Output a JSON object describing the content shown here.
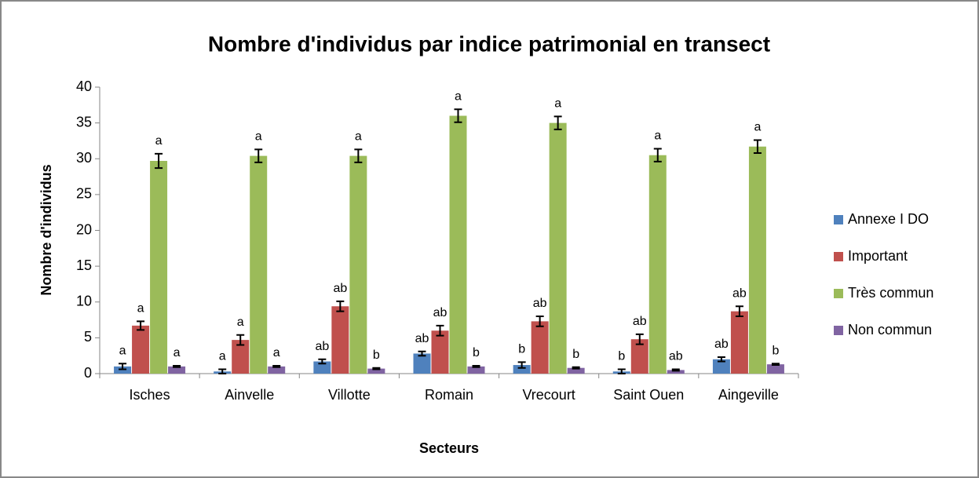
{
  "chart_data": {
    "type": "bar",
    "title": "Nombre d'individus par indice patrimonial en transect",
    "xlabel": "Secteurs",
    "ylabel": "Nombre d'individus",
    "categories": [
      "Isches",
      "Ainvelle",
      "Villotte",
      "Romain",
      "Vrecourt",
      "Saint Ouen",
      "Aingeville"
    ],
    "series": [
      {
        "name": "Annexe I DO",
        "color": "#4f81bd",
        "values": [
          1.0,
          0.3,
          1.7,
          2.8,
          1.2,
          0.3,
          2.0
        ],
        "errors": [
          0.4,
          0.3,
          0.3,
          0.3,
          0.4,
          0.3,
          0.3
        ],
        "labels": [
          "a",
          "a",
          "ab",
          "ab",
          "b",
          "b",
          "ab"
        ]
      },
      {
        "name": "Important",
        "color": "#c0504d",
        "values": [
          6.7,
          4.7,
          9.4,
          6.0,
          7.3,
          4.8,
          8.7
        ],
        "errors": [
          0.6,
          0.7,
          0.7,
          0.7,
          0.7,
          0.7,
          0.7
        ],
        "labels": [
          "a",
          "a",
          "ab",
          "ab",
          "ab",
          "ab",
          "ab"
        ]
      },
      {
        "name": "Très commun",
        "color": "#9bbb59",
        "values": [
          29.7,
          30.4,
          30.4,
          36.0,
          35.0,
          30.5,
          31.7
        ],
        "errors": [
          1.0,
          0.9,
          0.9,
          0.9,
          0.9,
          0.9,
          0.9
        ],
        "labels": [
          "a",
          "a",
          "a",
          "a",
          "a",
          "a",
          "a"
        ]
      },
      {
        "name": "Non commun",
        "color": "#8064a2",
        "values": [
          1.0,
          1.0,
          0.7,
          1.0,
          0.8,
          0.5,
          1.3
        ],
        "errors": [
          0.1,
          0.1,
          0.1,
          0.1,
          0.1,
          0.1,
          0.1
        ],
        "labels": [
          "a",
          "a",
          "b",
          "b",
          "b",
          "ab",
          "b"
        ]
      }
    ],
    "ylim": [
      0,
      40
    ],
    "yticks": [
      0,
      5,
      10,
      15,
      20,
      25,
      30,
      35,
      40
    ],
    "grid": false,
    "legend": "right"
  }
}
